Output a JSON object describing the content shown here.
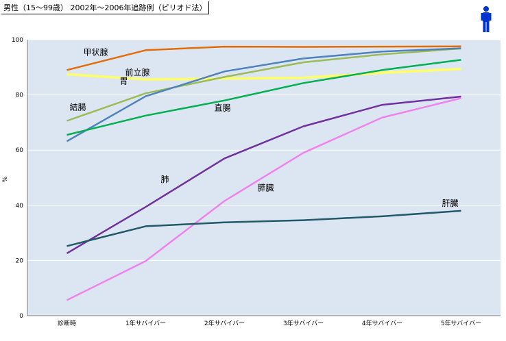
{
  "chart_data": {
    "type": "line",
    "title": "男性（15〜99歳） 2002年〜2006年追跡例（ピリオド法）",
    "xlabel": "",
    "ylabel": "%",
    "ylim": [
      0,
      100
    ],
    "yticks": [
      0,
      20,
      40,
      60,
      80,
      100
    ],
    "grid": true,
    "categories": [
      "診断時",
      "1年サバイバー",
      "2年サバイバー",
      "3年サバイバー",
      "4年サバイバー",
      "5年サバイバー"
    ],
    "series": [
      {
        "name": "甲状腺",
        "color": "#e36c0a",
        "values": [
          89.0,
          96.2,
          97.5,
          97.4,
          97.5,
          97.6
        ]
      },
      {
        "name": "前立腺",
        "color": "#ffff66",
        "values": [
          87.5,
          85.6,
          85.9,
          86.2,
          88.0,
          89.4
        ]
      },
      {
        "name": "結腸",
        "color": "#9bbb59",
        "values": [
          70.6,
          80.6,
          86.5,
          91.8,
          94.7,
          96.8
        ]
      },
      {
        "name": "胃",
        "color": "#4f81bd",
        "values": [
          63.2,
          79.5,
          88.5,
          93.2,
          95.7,
          96.9
        ]
      },
      {
        "name": "直腸",
        "color": "#00b050",
        "values": [
          65.5,
          72.5,
          78.0,
          84.3,
          89.0,
          92.7
        ]
      },
      {
        "name": "肺",
        "color": "#7030a0",
        "values": [
          22.6,
          39.4,
          57.0,
          68.6,
          76.4,
          79.4
        ]
      },
      {
        "name": "膵臓",
        "color": "#ee82ee",
        "values": [
          5.6,
          19.8,
          41.6,
          59.0,
          71.8,
          78.8
        ]
      },
      {
        "name": "肝臓",
        "color": "#215967",
        "values": [
          25.2,
          32.4,
          33.8,
          34.6,
          36.0,
          38.0
        ]
      }
    ]
  },
  "colors": {
    "plot_bg": "#dce6f2",
    "gridline": "#ffffff",
    "person_icon": "#0033cc"
  }
}
